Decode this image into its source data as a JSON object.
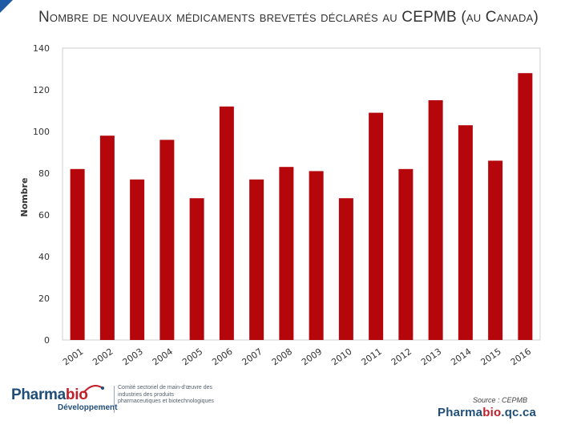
{
  "title": "Nombre de nouveaux médicaments brevetés déclarés au CEPMB (au Canada)",
  "chart_data": {
    "type": "bar",
    "categories": [
      "2001",
      "2002",
      "2003",
      "2004",
      "2005",
      "2006",
      "2007",
      "2008",
      "2009",
      "2010",
      "2011",
      "2012",
      "2013",
      "2014",
      "2015",
      "2016"
    ],
    "values": [
      82,
      98,
      77,
      96,
      68,
      112,
      77,
      83,
      81,
      68,
      109,
      82,
      115,
      103,
      86,
      128
    ],
    "ylabel": "Nombre",
    "ylim": [
      0,
      140
    ],
    "yticks": [
      0,
      20,
      40,
      60,
      80,
      100,
      120,
      140
    ],
    "grid": false,
    "bar_color": "#b5060c",
    "source": "Source : CEPMB"
  },
  "logo": {
    "name_part1": "Pharma",
    "name_part2": "bio",
    "subtitle": "Développement",
    "description": "Comité sectoriel de main-d'œuvre des industries des produits pharmaceutiques et biotechnologiques"
  },
  "website": {
    "part1": "Pharma",
    "part2": "bio",
    "part3": ".qc.ca"
  },
  "colors": {
    "accent_blue": "#1f5aa6",
    "brand_navy": "#1f4e79",
    "brand_red": "#c0202a"
  }
}
